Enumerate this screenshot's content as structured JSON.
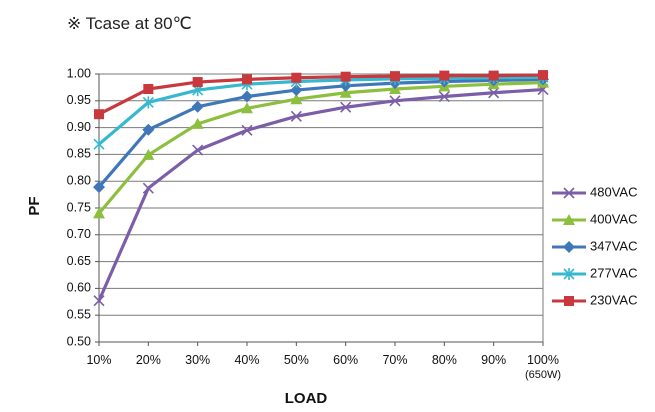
{
  "note": "※ Tcase at 80℃",
  "chart_data": {
    "type": "line",
    "xlabel": "LOAD",
    "ylabel": "PF",
    "categories": [
      "10%",
      "20%",
      "30%",
      "40%",
      "50%",
      "60%",
      "70%",
      "80%",
      "90%",
      "100%"
    ],
    "category_sublabel": {
      "index": 9,
      "text": "(650W)"
    },
    "y_ticks": [
      "0.50",
      "0.55",
      "0.60",
      "0.65",
      "0.70",
      "0.75",
      "0.80",
      "0.85",
      "0.90",
      "0.95",
      "1.00"
    ],
    "ylim": [
      0.5,
      1.0
    ],
    "grid": true,
    "legend_position": "right",
    "series": [
      {
        "name": "480VAC",
        "color": "#7b5ea7",
        "marker": "x",
        "values": [
          0.577,
          0.787,
          0.858,
          0.895,
          0.921,
          0.938,
          0.95,
          0.958,
          0.965,
          0.971
        ]
      },
      {
        "name": "400VAC",
        "color": "#8dbf3f",
        "marker": "triangle",
        "values": [
          0.74,
          0.849,
          0.907,
          0.936,
          0.953,
          0.965,
          0.972,
          0.977,
          0.981,
          0.984
        ]
      },
      {
        "name": "347VAC",
        "color": "#3f77b8",
        "marker": "diamond",
        "values": [
          0.789,
          0.896,
          0.939,
          0.958,
          0.97,
          0.978,
          0.983,
          0.986,
          0.988,
          0.99
        ]
      },
      {
        "name": "277VAC",
        "color": "#36b8cf",
        "marker": "asterisk",
        "values": [
          0.869,
          0.947,
          0.97,
          0.981,
          0.986,
          0.989,
          0.991,
          0.992,
          0.993,
          0.994
        ]
      },
      {
        "name": "230VAC",
        "color": "#c8383c",
        "marker": "square",
        "values": [
          0.925,
          0.972,
          0.985,
          0.99,
          0.993,
          0.995,
          0.996,
          0.997,
          0.997,
          0.998
        ]
      }
    ]
  }
}
